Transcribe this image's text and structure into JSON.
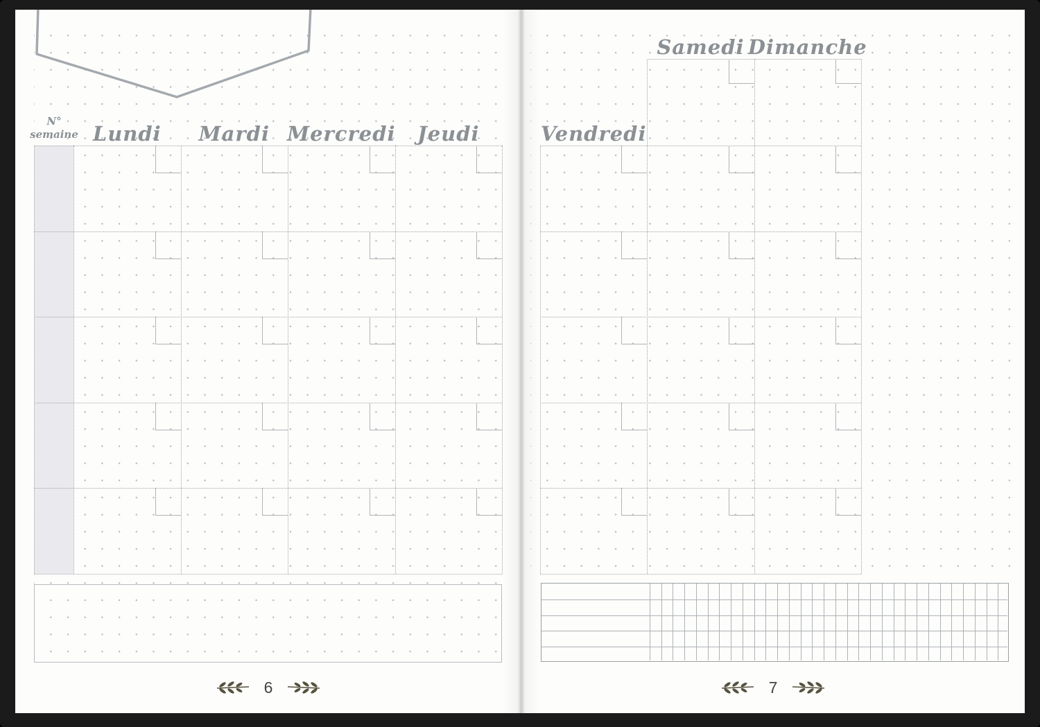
{
  "left_page": {
    "week_header": {
      "line1": "N°",
      "line2": "semaine"
    },
    "day_headers": [
      "Lundi",
      "Mardi",
      "Mercredi",
      "Jeudi"
    ],
    "page_number": "6"
  },
  "right_page": {
    "day_headers": [
      "Vendredi",
      "Samedi",
      "Dimanche"
    ],
    "page_number": "7"
  },
  "grid": {
    "week_rows": 5,
    "weekend_extra_top_cell": true,
    "tracker_rows": 5,
    "tracker_day_columns": 31
  },
  "icons": {
    "banner": "pennant-banner-outline",
    "left_ornament": "laurel-sprig-icon",
    "right_ornament": "laurel-sprig-icon"
  },
  "colors": {
    "frame": "#1b1b1b",
    "paper": "#fdfdfc",
    "dot_grid": "#b7bbbd",
    "dotted_rule": "#9fa4a6",
    "script_text": "#8b9094",
    "week_column_shade": "#e9e9ee",
    "ornament": "#55513d",
    "page_number_text": "#45443f"
  }
}
